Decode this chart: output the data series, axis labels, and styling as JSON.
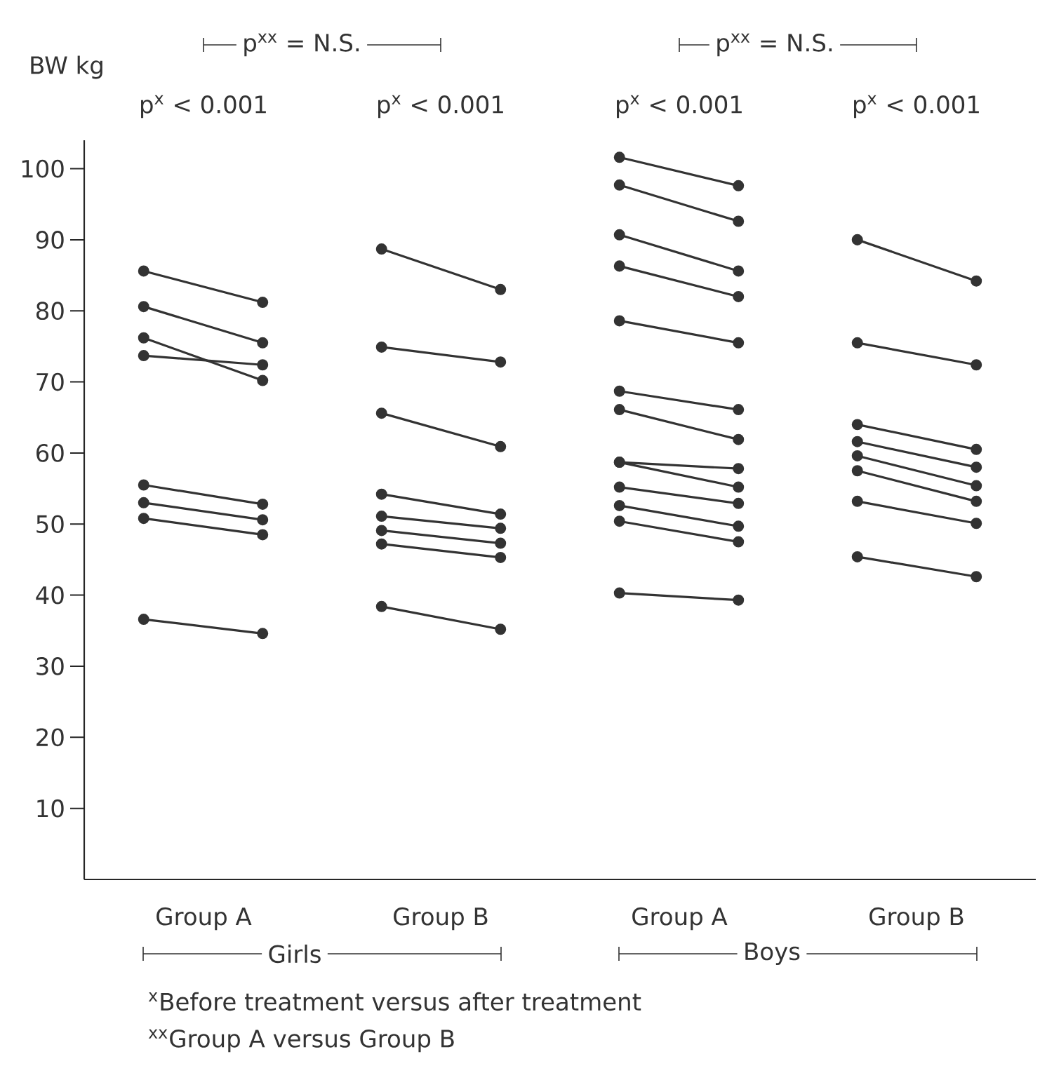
{
  "chart_data": {
    "type": "line",
    "ylabel": "BW kg",
    "marker": "circle",
    "categories": [
      null,
      null,
      null,
      null,
      null,
      null,
      null,
      null
    ],
    "ylim": [
      0,
      104
    ],
    "yticks": [
      10,
      20,
      30,
      40,
      50,
      60,
      70,
      80,
      90,
      100
    ],
    "series": [
      {
        "color": "#333333",
        "values": [
          85.6,
          81.2,
          null,
          null,
          null,
          null,
          null,
          null
        ]
      },
      {
        "color": "#333333",
        "values": [
          80.6,
          75.5,
          null,
          null,
          null,
          null,
          null,
          null
        ]
      },
      {
        "color": "#333333",
        "values": [
          76.2,
          70.2,
          null,
          null,
          null,
          null,
          null,
          null
        ]
      },
      {
        "color": "#333333",
        "values": [
          73.7,
          72.4,
          null,
          null,
          null,
          null,
          null,
          null
        ]
      },
      {
        "color": "#333333",
        "values": [
          55.5,
          52.8,
          null,
          null,
          null,
          null,
          null,
          null
        ]
      },
      {
        "color": "#333333",
        "values": [
          53.0,
          50.6,
          null,
          null,
          null,
          null,
          null,
          null
        ]
      },
      {
        "color": "#333333",
        "values": [
          50.8,
          48.5,
          null,
          null,
          null,
          null,
          null,
          null
        ]
      },
      {
        "color": "#333333",
        "values": [
          36.6,
          34.6,
          null,
          null,
          null,
          null,
          null,
          null
        ]
      },
      {
        "color": "#333333",
        "values": [
          null,
          null,
          88.7,
          83.0,
          null,
          null,
          null,
          null
        ]
      },
      {
        "color": "#333333",
        "values": [
          null,
          null,
          74.9,
          72.8,
          null,
          null,
          null,
          null
        ]
      },
      {
        "color": "#333333",
        "values": [
          null,
          null,
          65.6,
          60.9,
          null,
          null,
          null,
          null
        ]
      },
      {
        "color": "#333333",
        "values": [
          null,
          null,
          54.2,
          51.4,
          null,
          null,
          null,
          null
        ]
      },
      {
        "color": "#333333",
        "values": [
          null,
          null,
          51.1,
          49.4,
          null,
          null,
          null,
          null
        ]
      },
      {
        "color": "#333333",
        "values": [
          null,
          null,
          49.1,
          47.3,
          null,
          null,
          null,
          null
        ]
      },
      {
        "color": "#333333",
        "values": [
          null,
          null,
          47.2,
          45.3,
          null,
          null,
          null,
          null
        ]
      },
      {
        "color": "#333333",
        "values": [
          null,
          null,
          38.4,
          35.2,
          null,
          null,
          null,
          null
        ]
      },
      {
        "color": "#333333",
        "values": [
          null,
          null,
          null,
          null,
          101.6,
          97.6,
          null,
          null
        ]
      },
      {
        "color": "#333333",
        "values": [
          null,
          null,
          null,
          null,
          97.7,
          92.6,
          null,
          null
        ]
      },
      {
        "color": "#333333",
        "values": [
          null,
          null,
          null,
          null,
          90.7,
          85.6,
          null,
          null
        ]
      },
      {
        "color": "#333333",
        "values": [
          null,
          null,
          null,
          null,
          86.3,
          82.0,
          null,
          null
        ]
      },
      {
        "color": "#333333",
        "values": [
          null,
          null,
          null,
          null,
          78.6,
          75.5,
          null,
          null
        ]
      },
      {
        "color": "#333333",
        "values": [
          null,
          null,
          null,
          null,
          68.7,
          66.1,
          null,
          null
        ]
      },
      {
        "color": "#333333",
        "values": [
          null,
          null,
          null,
          null,
          66.1,
          61.9,
          null,
          null
        ]
      },
      {
        "color": "#333333",
        "values": [
          null,
          null,
          null,
          null,
          58.7,
          57.8,
          null,
          null
        ]
      },
      {
        "color": "#333333",
        "values": [
          null,
          null,
          null,
          null,
          58.7,
          55.2,
          null,
          null
        ]
      },
      {
        "color": "#333333",
        "values": [
          null,
          null,
          null,
          null,
          55.2,
          52.9,
          null,
          null
        ]
      },
      {
        "color": "#333333",
        "values": [
          null,
          null,
          null,
          null,
          52.6,
          49.7,
          null,
          null
        ]
      },
      {
        "color": "#333333",
        "values": [
          null,
          null,
          null,
          null,
          50.4,
          47.5,
          null,
          null
        ]
      },
      {
        "color": "#333333",
        "values": [
          null,
          null,
          null,
          null,
          40.3,
          39.3,
          null,
          null
        ]
      },
      {
        "color": "#333333",
        "values": [
          null,
          null,
          null,
          null,
          null,
          null,
          90.0,
          84.2
        ]
      },
      {
        "color": "#333333",
        "values": [
          null,
          null,
          null,
          null,
          null,
          null,
          75.5,
          72.4
        ]
      },
      {
        "color": "#333333",
        "values": [
          null,
          null,
          null,
          null,
          null,
          null,
          64.0,
          60.5
        ]
      },
      {
        "color": "#333333",
        "values": [
          null,
          null,
          null,
          null,
          null,
          null,
          61.6,
          58.0
        ]
      },
      {
        "color": "#333333",
        "values": [
          null,
          null,
          null,
          null,
          null,
          null,
          59.6,
          55.4
        ]
      },
      {
        "color": "#333333",
        "values": [
          null,
          null,
          null,
          null,
          null,
          null,
          57.5,
          53.2
        ]
      },
      {
        "color": "#333333",
        "values": [
          null,
          null,
          null,
          null,
          null,
          null,
          53.2,
          50.1
        ]
      },
      {
        "color": "#333333",
        "values": [
          null,
          null,
          null,
          null,
          null,
          null,
          45.4,
          42.6
        ]
      }
    ],
    "annotations": [
      "p$^{x}$ < 0.001",
      "p$^{x}$ < 0.001",
      "p$^{x}$ < 0.001",
      "p$^{x}$ < 0.001",
      "p$^{xx}$ = N.S.",
      "p$^{xx}$ = N.S.",
      "Girls",
      "Boys",
      "$^{x}$Before treatment versus after treatment",
      "$^{xx}$Group A versus  Group B",
      "Group A",
      "Group B",
      "Group A",
      "Group B"
    ]
  }
}
